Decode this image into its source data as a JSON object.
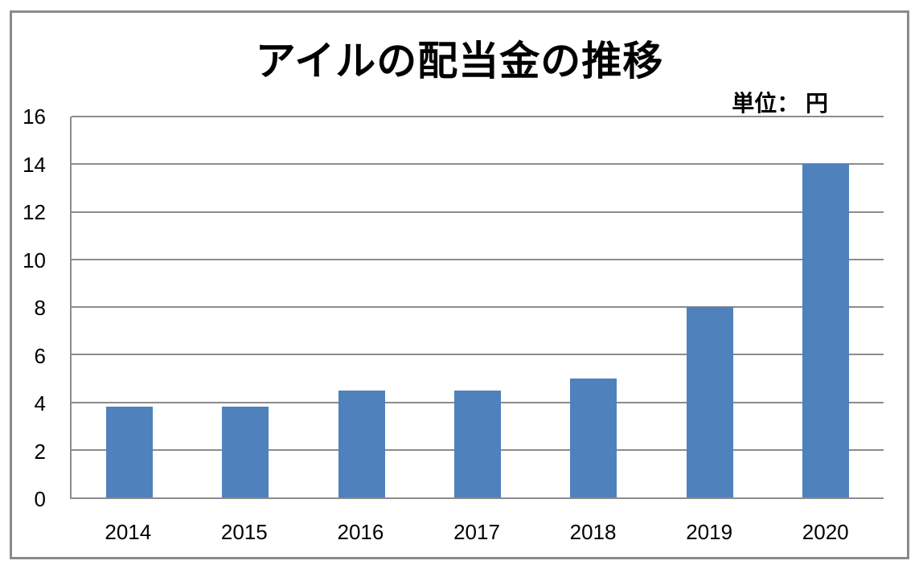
{
  "page": {
    "background": "#ffffff"
  },
  "header": {
    "title": "アイルの配当金の推移",
    "unit_label": "単位： 円"
  },
  "colors": {
    "bar": "#4f81bd",
    "gridline": "#8c8c8c",
    "frame_border": "#8a8a8a",
    "text": "#000000",
    "background": "#ffffff"
  },
  "chart_data": {
    "type": "bar",
    "title": "アイルの配当金の推移",
    "unit_annotation": "単位： 円",
    "categories": [
      "2014",
      "2015",
      "2016",
      "2017",
      "2018",
      "2019",
      "2020"
    ],
    "values": [
      3.8,
      3.8,
      4.5,
      4.5,
      5,
      8,
      14
    ],
    "xlabel": "",
    "ylabel": "",
    "ylim": [
      0,
      16
    ],
    "yticks": [
      0,
      2,
      4,
      6,
      8,
      10,
      12,
      14,
      16
    ],
    "grid": true,
    "legend": false,
    "legend_position": "none"
  }
}
